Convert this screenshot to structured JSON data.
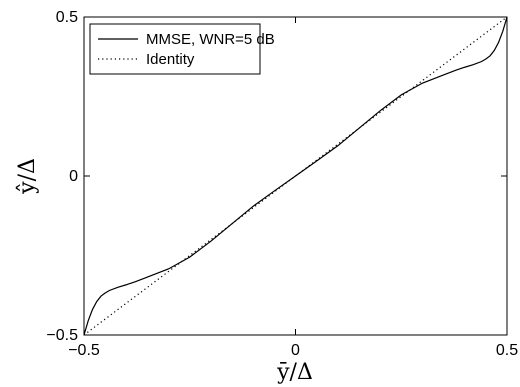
{
  "chart_data": {
    "type": "line",
    "title": "",
    "xlabel": "ȳ/Δ",
    "ylabel": "ŷ/Δ",
    "xlim": [
      -0.5,
      0.5
    ],
    "ylim": [
      -0.5,
      0.5
    ],
    "xticks": [
      -0.5,
      0,
      0.5
    ],
    "yticks": [
      -0.5,
      0,
      0.5
    ],
    "xtick_labels": [
      "−0.5",
      "0",
      "0.5"
    ],
    "ytick_labels": [
      "−0.5",
      "0",
      "0.5"
    ],
    "grid": false,
    "legend_position": "top-left",
    "series": [
      {
        "name": "MMSE, WNR=5 dB",
        "style": "solid",
        "color": "#000000",
        "x": [
          -0.5,
          -0.49,
          -0.48,
          -0.47,
          -0.46,
          -0.45,
          -0.44,
          -0.42,
          -0.4,
          -0.38,
          -0.35,
          -0.3,
          -0.25,
          -0.2,
          -0.15,
          -0.1,
          -0.05,
          0.0,
          0.05,
          0.1,
          0.15,
          0.2,
          0.25,
          0.3,
          0.35,
          0.38,
          0.4,
          0.42,
          0.44,
          0.45,
          0.46,
          0.47,
          0.48,
          0.49,
          0.5
        ],
        "y": [
          -0.5,
          -0.455,
          -0.42,
          -0.395,
          -0.378,
          -0.368,
          -0.36,
          -0.35,
          -0.342,
          -0.333,
          -0.318,
          -0.292,
          -0.255,
          -0.205,
          -0.15,
          -0.095,
          -0.047,
          0.0,
          0.047,
          0.095,
          0.15,
          0.205,
          0.255,
          0.292,
          0.318,
          0.333,
          0.342,
          0.35,
          0.36,
          0.368,
          0.378,
          0.395,
          0.42,
          0.455,
          0.5
        ]
      },
      {
        "name": "Identity",
        "style": "dotted",
        "color": "#000000",
        "x": [
          -0.5,
          0.5
        ],
        "y": [
          -0.5,
          0.5
        ]
      }
    ]
  }
}
